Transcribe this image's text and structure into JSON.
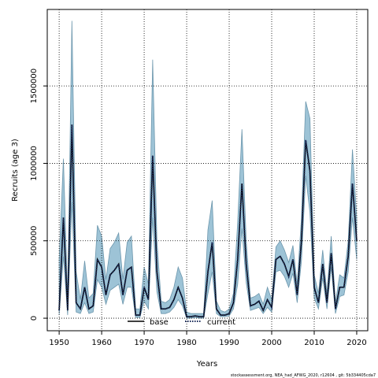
{
  "chart_data": {
    "type": "line",
    "xlabel": "Years",
    "ylabel": "Recruits (age 3)",
    "footer": "stockassessment.org, NEA_had_AFWG_2020, r12604 , git: 5b334405cda7",
    "x": [
      1950,
      1951,
      1952,
      1953,
      1954,
      1955,
      1956,
      1957,
      1958,
      1959,
      1960,
      1961,
      1962,
      1963,
      1964,
      1965,
      1966,
      1967,
      1968,
      1969,
      1970,
      1971,
      1972,
      1973,
      1974,
      1975,
      1976,
      1977,
      1978,
      1979,
      1980,
      1981,
      1982,
      1983,
      1984,
      1985,
      1986,
      1987,
      1988,
      1989,
      1990,
      1991,
      1992,
      1993,
      1994,
      1995,
      1996,
      1997,
      1998,
      1999,
      2000,
      2001,
      2002,
      2003,
      2004,
      2005,
      2006,
      2007,
      2008,
      2009,
      2010,
      2011,
      2012,
      2013,
      2014,
      2015,
      2016,
      2017,
      2018,
      2019,
      2020
    ],
    "interval": {
      "color": "#9dc3d6",
      "upper": [
        380000,
        1030000,
        130000,
        1920000,
        300000,
        120000,
        370000,
        130000,
        160000,
        600000,
        530000,
        250000,
        450000,
        490000,
        550000,
        250000,
        490000,
        530000,
        60000,
        60000,
        330000,
        220000,
        1670000,
        500000,
        110000,
        100000,
        120000,
        200000,
        330000,
        260000,
        40000,
        30000,
        30000,
        30000,
        30000,
        570000,
        760000,
        110000,
        50000,
        40000,
        60000,
        160000,
        620000,
        1220000,
        500000,
        130000,
        140000,
        160000,
        90000,
        200000,
        120000,
        460000,
        500000,
        440000,
        360000,
        470000,
        220000,
        650000,
        1400000,
        1290000,
        280000,
        160000,
        440000,
        160000,
        530000,
        100000,
        280000,
        260000,
        500000,
        1090000,
        650000
      ],
      "lower": [
        20000,
        400000,
        20000,
        750000,
        40000,
        30000,
        100000,
        30000,
        40000,
        250000,
        200000,
        90000,
        180000,
        200000,
        220000,
        90000,
        200000,
        200000,
        5000,
        5000,
        110000,
        60000,
        650000,
        170000,
        30000,
        30000,
        40000,
        70000,
        120000,
        80000,
        0,
        0,
        5000,
        0,
        0,
        160000,
        300000,
        30000,
        10000,
        10000,
        15000,
        60000,
        220000,
        580000,
        230000,
        50000,
        60000,
        70000,
        30000,
        70000,
        40000,
        300000,
        310000,
        270000,
        200000,
        290000,
        100000,
        370000,
        920000,
        680000,
        130000,
        60000,
        260000,
        60000,
        330000,
        30000,
        140000,
        150000,
        300000,
        650000,
        380000
      ]
    },
    "series": [
      {
        "name": "base",
        "color": "#000000",
        "values": [
          50000,
          650000,
          50000,
          1250000,
          100000,
          60000,
          200000,
          60000,
          80000,
          380000,
          330000,
          150000,
          280000,
          310000,
          350000,
          150000,
          310000,
          330000,
          20000,
          20000,
          200000,
          120000,
          1050000,
          300000,
          60000,
          60000,
          70000,
          120000,
          200000,
          130000,
          10000,
          10000,
          15000,
          10000,
          10000,
          300000,
          490000,
          60000,
          20000,
          20000,
          30000,
          100000,
          380000,
          870000,
          350000,
          80000,
          90000,
          110000,
          50000,
          120000,
          70000,
          380000,
          400000,
          350000,
          270000,
          380000,
          150000,
          500000,
          1150000,
          950000,
          200000,
          100000,
          350000,
          100000,
          420000,
          60000,
          200000,
          200000,
          400000,
          870000,
          500000
        ]
      },
      {
        "name": "current",
        "color": "#1a2b5a",
        "values": [
          50000,
          650000,
          50000,
          1250000,
          100000,
          60000,
          200000,
          60000,
          80000,
          380000,
          330000,
          150000,
          280000,
          310000,
          350000,
          150000,
          310000,
          330000,
          20000,
          20000,
          200000,
          120000,
          1050000,
          300000,
          60000,
          60000,
          70000,
          120000,
          200000,
          130000,
          10000,
          10000,
          15000,
          10000,
          10000,
          300000,
          490000,
          60000,
          20000,
          20000,
          30000,
          100000,
          380000,
          870000,
          350000,
          80000,
          90000,
          110000,
          50000,
          120000,
          70000,
          380000,
          400000,
          350000,
          270000,
          380000,
          150000,
          500000,
          1150000,
          950000,
          200000,
          100000,
          350000,
          100000,
          420000,
          60000,
          200000,
          200000,
          400000,
          870000,
          500000
        ]
      }
    ],
    "xlim": [
      1947.2,
      2022.6
    ],
    "xticks": [
      1950,
      1960,
      1970,
      1980,
      1990,
      2000,
      2010,
      2020
    ],
    "ylim": [
      -81000,
      1994000
    ],
    "yticks": [
      0,
      500000,
      1000000,
      1500000
    ],
    "grid": true
  }
}
